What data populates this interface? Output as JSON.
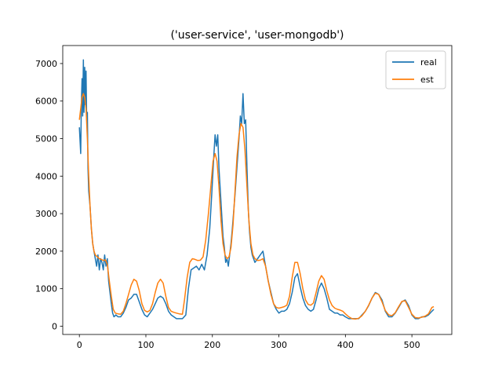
{
  "chart_data": {
    "type": "line",
    "title": "('user-service', 'user-mongodb')",
    "xlabel": "",
    "ylabel": "",
    "xlim": [
      -25,
      560
    ],
    "ylim": [
      -220,
      7480
    ],
    "x_ticks": [
      0,
      100,
      200,
      300,
      400,
      500
    ],
    "y_ticks": [
      0,
      1000,
      2000,
      3000,
      4000,
      5000,
      6000,
      7000
    ],
    "grid": false,
    "legend_position": "top-right",
    "series": [
      {
        "name": "real",
        "color": "#1f77b4",
        "points": [
          [
            0,
            5300
          ],
          [
            2,
            4600
          ],
          [
            3,
            5900
          ],
          [
            4,
            6600
          ],
          [
            5,
            5600
          ],
          [
            6,
            7100
          ],
          [
            7,
            5700
          ],
          [
            8,
            6900
          ],
          [
            9,
            5900
          ],
          [
            10,
            6800
          ],
          [
            11,
            5500
          ],
          [
            12,
            5700
          ],
          [
            13,
            4200
          ],
          [
            14,
            3600
          ],
          [
            16,
            3200
          ],
          [
            18,
            2600
          ],
          [
            20,
            2200
          ],
          [
            22,
            2000
          ],
          [
            24,
            1800
          ],
          [
            26,
            1600
          ],
          [
            28,
            1900
          ],
          [
            30,
            1500
          ],
          [
            32,
            1800
          ],
          [
            34,
            1700
          ],
          [
            36,
            1500
          ],
          [
            38,
            1900
          ],
          [
            40,
            1600
          ],
          [
            42,
            1800
          ],
          [
            44,
            1200
          ],
          [
            46,
            900
          ],
          [
            48,
            600
          ],
          [
            50,
            350
          ],
          [
            52,
            250
          ],
          [
            55,
            300
          ],
          [
            58,
            250
          ],
          [
            62,
            250
          ],
          [
            66,
            350
          ],
          [
            70,
            500
          ],
          [
            74,
            700
          ],
          [
            78,
            750
          ],
          [
            82,
            850
          ],
          [
            86,
            850
          ],
          [
            90,
            650
          ],
          [
            94,
            450
          ],
          [
            98,
            300
          ],
          [
            102,
            250
          ],
          [
            106,
            350
          ],
          [
            110,
            450
          ],
          [
            114,
            600
          ],
          [
            118,
            750
          ],
          [
            122,
            800
          ],
          [
            126,
            750
          ],
          [
            130,
            600
          ],
          [
            134,
            400
          ],
          [
            138,
            300
          ],
          [
            142,
            250
          ],
          [
            146,
            200
          ],
          [
            150,
            200
          ],
          [
            155,
            200
          ],
          [
            160,
            300
          ],
          [
            164,
            1000
          ],
          [
            168,
            1500
          ],
          [
            172,
            1550
          ],
          [
            176,
            1600
          ],
          [
            180,
            1500
          ],
          [
            184,
            1650
          ],
          [
            188,
            1500
          ],
          [
            192,
            1900
          ],
          [
            196,
            2600
          ],
          [
            199,
            3500
          ],
          [
            202,
            4500
          ],
          [
            204,
            5100
          ],
          [
            206,
            4800
          ],
          [
            208,
            5100
          ],
          [
            210,
            4200
          ],
          [
            212,
            3600
          ],
          [
            214,
            3000
          ],
          [
            216,
            2400
          ],
          [
            218,
            2100
          ],
          [
            220,
            1700
          ],
          [
            222,
            1800
          ],
          [
            224,
            1600
          ],
          [
            226,
            1900
          ],
          [
            228,
            2200
          ],
          [
            230,
            2600
          ],
          [
            234,
            3500
          ],
          [
            238,
            4500
          ],
          [
            240,
            5000
          ],
          [
            242,
            5600
          ],
          [
            244,
            5400
          ],
          [
            246,
            6200
          ],
          [
            248,
            5400
          ],
          [
            250,
            5500
          ],
          [
            252,
            4200
          ],
          [
            254,
            3100
          ],
          [
            256,
            2500
          ],
          [
            258,
            2100
          ],
          [
            260,
            1900
          ],
          [
            264,
            1700
          ],
          [
            268,
            1800
          ],
          [
            272,
            1900
          ],
          [
            276,
            2000
          ],
          [
            280,
            1600
          ],
          [
            284,
            1200
          ],
          [
            288,
            900
          ],
          [
            292,
            600
          ],
          [
            296,
            450
          ],
          [
            300,
            350
          ],
          [
            304,
            400
          ],
          [
            308,
            400
          ],
          [
            312,
            450
          ],
          [
            316,
            600
          ],
          [
            320,
            900
          ],
          [
            324,
            1300
          ],
          [
            328,
            1400
          ],
          [
            332,
            1050
          ],
          [
            336,
            750
          ],
          [
            340,
            550
          ],
          [
            344,
            450
          ],
          [
            348,
            400
          ],
          [
            352,
            450
          ],
          [
            356,
            700
          ],
          [
            360,
            1000
          ],
          [
            364,
            1150
          ],
          [
            368,
            1000
          ],
          [
            372,
            750
          ],
          [
            376,
            450
          ],
          [
            380,
            400
          ],
          [
            384,
            350
          ],
          [
            388,
            350
          ],
          [
            392,
            300
          ],
          [
            396,
            300
          ],
          [
            400,
            250
          ],
          [
            405,
            200
          ],
          [
            410,
            200
          ],
          [
            415,
            200
          ],
          [
            420,
            200
          ],
          [
            425,
            300
          ],
          [
            430,
            400
          ],
          [
            435,
            550
          ],
          [
            440,
            750
          ],
          [
            445,
            900
          ],
          [
            450,
            850
          ],
          [
            455,
            700
          ],
          [
            460,
            400
          ],
          [
            465,
            250
          ],
          [
            470,
            250
          ],
          [
            475,
            350
          ],
          [
            480,
            500
          ],
          [
            485,
            650
          ],
          [
            490,
            700
          ],
          [
            495,
            550
          ],
          [
            500,
            300
          ],
          [
            505,
            200
          ],
          [
            510,
            200
          ],
          [
            515,
            250
          ],
          [
            520,
            250
          ],
          [
            525,
            300
          ],
          [
            530,
            400
          ],
          [
            533,
            450
          ]
        ]
      },
      {
        "name": "est",
        "color": "#ff7f0e",
        "points": [
          [
            0,
            5500
          ],
          [
            2,
            5800
          ],
          [
            4,
            6100
          ],
          [
            6,
            6200
          ],
          [
            8,
            6100
          ],
          [
            10,
            5800
          ],
          [
            12,
            5000
          ],
          [
            14,
            4000
          ],
          [
            16,
            3200
          ],
          [
            18,
            2600
          ],
          [
            20,
            2200
          ],
          [
            22,
            2000
          ],
          [
            24,
            1900
          ],
          [
            27,
            1850
          ],
          [
            30,
            1800
          ],
          [
            33,
            1780
          ],
          [
            36,
            1750
          ],
          [
            39,
            1770
          ],
          [
            42,
            1650
          ],
          [
            45,
            1200
          ],
          [
            48,
            800
          ],
          [
            51,
            450
          ],
          [
            54,
            350
          ],
          [
            58,
            330
          ],
          [
            62,
            320
          ],
          [
            66,
            400
          ],
          [
            70,
            600
          ],
          [
            74,
            850
          ],
          [
            78,
            1100
          ],
          [
            82,
            1250
          ],
          [
            86,
            1200
          ],
          [
            90,
            950
          ],
          [
            94,
            600
          ],
          [
            98,
            420
          ],
          [
            102,
            380
          ],
          [
            106,
            420
          ],
          [
            110,
            600
          ],
          [
            114,
            900
          ],
          [
            118,
            1150
          ],
          [
            122,
            1250
          ],
          [
            126,
            1150
          ],
          [
            130,
            800
          ],
          [
            134,
            500
          ],
          [
            138,
            400
          ],
          [
            142,
            370
          ],
          [
            146,
            350
          ],
          [
            150,
            330
          ],
          [
            155,
            320
          ],
          [
            158,
            700
          ],
          [
            162,
            1300
          ],
          [
            166,
            1700
          ],
          [
            170,
            1800
          ],
          [
            174,
            1780
          ],
          [
            178,
            1750
          ],
          [
            182,
            1760
          ],
          [
            186,
            1850
          ],
          [
            190,
            2300
          ],
          [
            194,
            3000
          ],
          [
            198,
            3800
          ],
          [
            201,
            4400
          ],
          [
            204,
            4600
          ],
          [
            207,
            4400
          ],
          [
            210,
            3700
          ],
          [
            213,
            2800
          ],
          [
            216,
            2200
          ],
          [
            219,
            1900
          ],
          [
            222,
            1800
          ],
          [
            225,
            1850
          ],
          [
            228,
            2100
          ],
          [
            231,
            2700
          ],
          [
            234,
            3600
          ],
          [
            237,
            4500
          ],
          [
            240,
            5100
          ],
          [
            243,
            5400
          ],
          [
            246,
            5300
          ],
          [
            249,
            4700
          ],
          [
            252,
            3700
          ],
          [
            255,
            2800
          ],
          [
            258,
            2200
          ],
          [
            261,
            1900
          ],
          [
            264,
            1800
          ],
          [
            268,
            1750
          ],
          [
            272,
            1760
          ],
          [
            276,
            1800
          ],
          [
            280,
            1600
          ],
          [
            284,
            1200
          ],
          [
            288,
            850
          ],
          [
            292,
            600
          ],
          [
            296,
            500
          ],
          [
            300,
            480
          ],
          [
            304,
            500
          ],
          [
            308,
            520
          ],
          [
            312,
            560
          ],
          [
            316,
            800
          ],
          [
            320,
            1300
          ],
          [
            324,
            1700
          ],
          [
            328,
            1700
          ],
          [
            332,
            1400
          ],
          [
            336,
            1000
          ],
          [
            340,
            700
          ],
          [
            344,
            580
          ],
          [
            348,
            560
          ],
          [
            352,
            620
          ],
          [
            356,
            900
          ],
          [
            360,
            1200
          ],
          [
            364,
            1350
          ],
          [
            368,
            1250
          ],
          [
            372,
            950
          ],
          [
            376,
            700
          ],
          [
            380,
            550
          ],
          [
            384,
            480
          ],
          [
            388,
            450
          ],
          [
            392,
            430
          ],
          [
            396,
            400
          ],
          [
            400,
            330
          ],
          [
            405,
            250
          ],
          [
            410,
            200
          ],
          [
            415,
            190
          ],
          [
            420,
            210
          ],
          [
            425,
            280
          ],
          [
            430,
            400
          ],
          [
            435,
            560
          ],
          [
            440,
            750
          ],
          [
            445,
            880
          ],
          [
            450,
            850
          ],
          [
            455,
            650
          ],
          [
            460,
            420
          ],
          [
            465,
            300
          ],
          [
            470,
            280
          ],
          [
            475,
            360
          ],
          [
            480,
            520
          ],
          [
            485,
            660
          ],
          [
            490,
            680
          ],
          [
            495,
            500
          ],
          [
            500,
            320
          ],
          [
            505,
            230
          ],
          [
            510,
            220
          ],
          [
            515,
            240
          ],
          [
            520,
            270
          ],
          [
            525,
            330
          ],
          [
            530,
            500
          ],
          [
            533,
            520
          ]
        ]
      }
    ]
  }
}
